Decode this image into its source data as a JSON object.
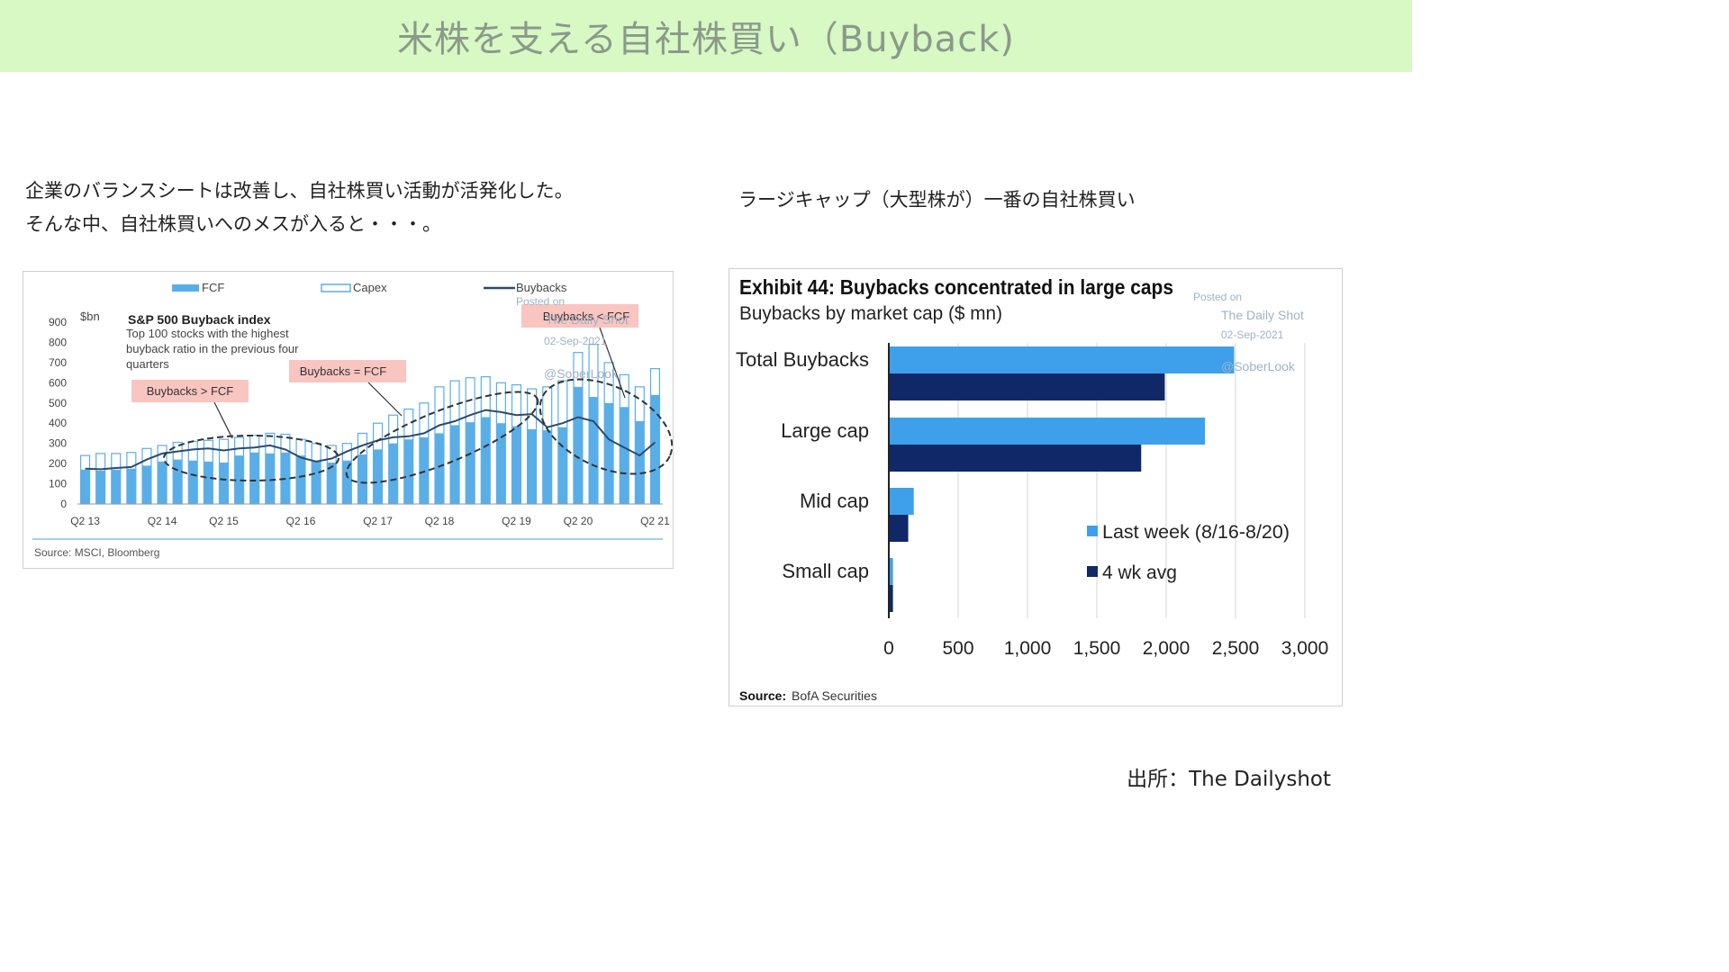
{
  "page_title": "米株を支える自社株買い（Buyback)",
  "left_caption": {
    "line1": "企業のバランスシートは改善し、自社株買い活動が活発化した。",
    "line2": "そんな中、自社株買いへのメスが入ると・・・。"
  },
  "right_caption": "ラージキャップ（大型株が）一番の自社株買い",
  "source_credit": "出所：The Dailyshot",
  "chart_data": [
    {
      "type": "bar",
      "title": "S&P 500 Buyback index",
      "subtitle": "Top 100 stocks with the highest buyback ratio in the previous four quarters",
      "unit_label": "$bn",
      "x_tick_labels": [
        "Q2 13",
        "Q2 14",
        "Q2 15",
        "Q2 16",
        "Q2 17",
        "Q2 18",
        "Q2 19",
        "Q2 20",
        "Q2 21"
      ],
      "ylim": [
        0,
        900
      ],
      "y_ticks": [
        0,
        100,
        200,
        300,
        400,
        500,
        600,
        700,
        800,
        900
      ],
      "legend": [
        "FCF",
        "Capex",
        "Buybacks"
      ],
      "legend_position": "top",
      "series": [
        {
          "name": "FCF",
          "kind": "bar",
          "color": "#5aaee8",
          "values": [
            170,
            165,
            170,
            175,
            190,
            210,
            220,
            215,
            210,
            205,
            240,
            255,
            250,
            255,
            240,
            215,
            205,
            215,
            245,
            270,
            300,
            320,
            330,
            350,
            390,
            405,
            430,
            400,
            385,
            370,
            365,
            380,
            580,
            530,
            500,
            480,
            410,
            540
          ]
        },
        {
          "name": "Capex",
          "kind": "bar-outline",
          "color": "#5aaee8",
          "values": [
            240,
            250,
            250,
            255,
            275,
            290,
            305,
            310,
            315,
            320,
            330,
            340,
            350,
            345,
            320,
            300,
            290,
            300,
            350,
            400,
            440,
            470,
            500,
            580,
            610,
            625,
            630,
            600,
            590,
            570,
            580,
            610,
            750,
            790,
            700,
            640,
            580,
            670
          ]
        },
        {
          "name": "Buybacks",
          "kind": "line",
          "color": "#2c4a6e",
          "values": [
            175,
            172,
            178,
            183,
            220,
            250,
            260,
            270,
            275,
            265,
            275,
            280,
            290,
            270,
            230,
            210,
            225,
            260,
            290,
            315,
            330,
            335,
            350,
            390,
            410,
            440,
            465,
            455,
            440,
            445,
            380,
            400,
            430,
            410,
            320,
            280,
            240,
            305
          ]
        }
      ],
      "annotations": [
        "Buybacks > FCF",
        "Buybacks = FCF",
        "Buybacks < FCF"
      ],
      "source": "Source: MSCI, Bloomberg",
      "watermark": [
        "Posted on",
        "The Daily Shot",
        "02-Sep-2021",
        "@SoberLook"
      ]
    },
    {
      "type": "bar",
      "orientation": "horizontal",
      "title": "Exhibit 44: Buybacks concentrated in large caps",
      "subtitle": "Buybacks by market cap ($ mn)",
      "categories": [
        "Total Buybacks",
        "Large cap",
        "Mid cap",
        "Small cap"
      ],
      "xlim": [
        0,
        3000
      ],
      "x_ticks": [
        0,
        500,
        1000,
        1500,
        2000,
        2500,
        3000
      ],
      "x_tick_labels": [
        "0",
        "500",
        "1,000",
        "1,500",
        "2,000",
        "2,500",
        "3,000"
      ],
      "series": [
        {
          "name": "Last week (8/16-8/20)",
          "color": "#3ea0ea",
          "values": [
            2490,
            2280,
            180,
            30
          ]
        },
        {
          "name": "4 wk avg",
          "color": "#102868",
          "values": [
            1990,
            1820,
            140,
            30
          ]
        }
      ],
      "legend_position": "right",
      "source_label": "Source:",
      "source_text": "BofA Securities",
      "watermark": [
        "Posted on",
        "The Daily Shot",
        "02-Sep-2021",
        "@SoberLook"
      ]
    }
  ]
}
